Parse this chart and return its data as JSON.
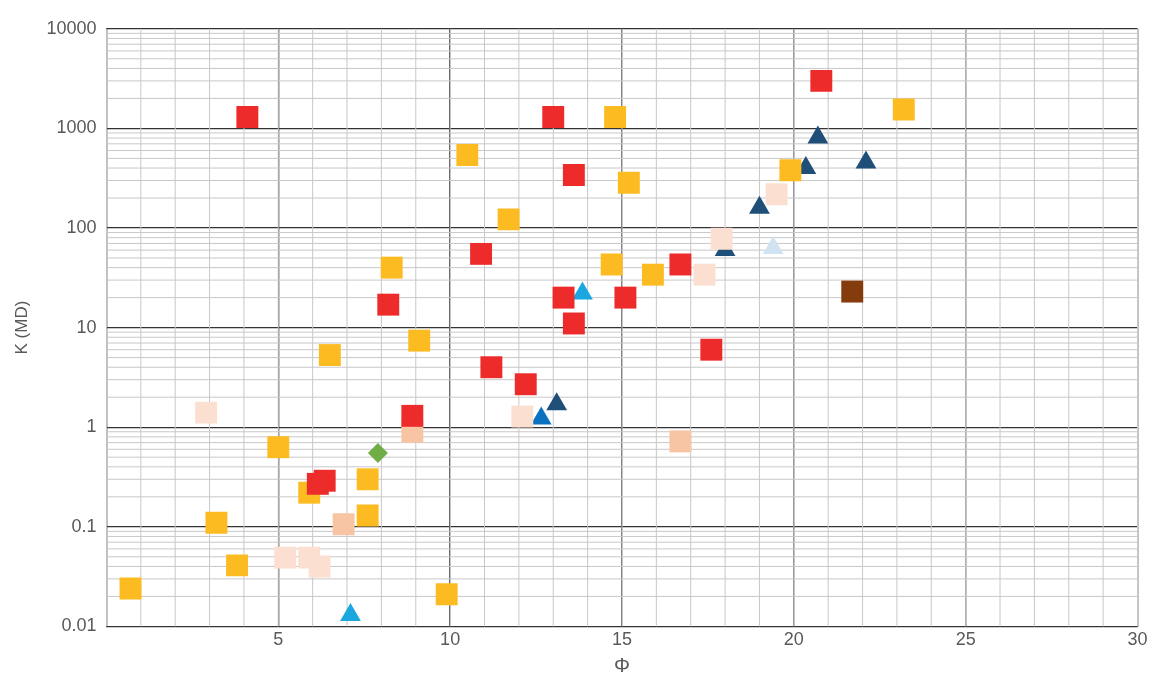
{
  "chart_data": {
    "type": "scatter",
    "xlabel": "Φ",
    "ylabel": "K (MD)",
    "log": "y",
    "grid": true,
    "legend": false,
    "xlim": [
      0,
      30
    ],
    "xticks": [
      {
        "value": 0,
        "label": null
      },
      5,
      10,
      15,
      20,
      25,
      30
    ],
    "ylim": [
      0.01,
      10000
    ],
    "yticks": [
      0.01,
      0.1,
      1,
      10,
      100,
      1000,
      10000
    ],
    "series": [
      {
        "color": "#ee2b2b",
        "marker": "square",
        "x": [
          4.1,
          20.8,
          13,
          13.6,
          10.9,
          8.2,
          13.3,
          13.6,
          15.1,
          16.7,
          17.6,
          11.2,
          12.2,
          8.9,
          6.15,
          6.35
        ],
        "values": [
          1300,
          3000,
          1300,
          340,
          55,
          17,
          20,
          11,
          20,
          43,
          6,
          4,
          2.7,
          1.3,
          0.27,
          0.29
        ]
      },
      {
        "color": "#fdbb22",
        "marker": "square",
        "x": [
          14.8,
          23.2,
          10.5,
          15.2,
          19.9,
          11.7,
          8.3,
          14.7,
          15.9,
          6.5,
          9.1,
          5,
          5.9,
          7.6,
          7.6,
          3.2,
          3.8,
          0.7,
          9.9
        ],
        "values": [
          1300,
          1550,
          540,
          285,
          380,
          122,
          40,
          43,
          34,
          5.3,
          7.4,
          0.63,
          0.22,
          0.3,
          0.13,
          0.11,
          0.041,
          0.024,
          0.021
        ]
      },
      {
        "color": "#fbe0d2",
        "marker": "square",
        "x": [
          2.9,
          12.1,
          17.4,
          17.9,
          19.5,
          5.2,
          5.9,
          6.2
        ],
        "values": [
          1.4,
          1.28,
          34,
          78,
          218,
          0.049,
          0.049,
          0.04
        ]
      },
      {
        "color": "#f8c5a4",
        "marker": "square",
        "x": [
          8.9,
          6.9,
          16.7
        ],
        "values": [
          0.9,
          0.106,
          0.72
        ]
      },
      {
        "color": "#1f4e79",
        "marker": "triangle",
        "x": [
          20.7,
          20.35,
          22.1,
          19,
          18,
          13.1
        ],
        "values": [
          810,
          400,
          455,
          160,
          60,
          1.7
        ]
      },
      {
        "color": "#1aa7e0",
        "marker": "triangle",
        "x": [
          13.85,
          7.1
        ],
        "values": [
          22,
          0.013
        ]
      },
      {
        "color": "#0b72c2",
        "marker": "triangle",
        "x": [
          12.65
        ],
        "values": [
          1.22
        ]
      },
      {
        "color": "#cfe3f3",
        "marker": "triangle",
        "x": [
          19.4
        ],
        "values": [
          63
        ]
      },
      {
        "color": "#70ad47",
        "marker": "diamond",
        "x": [
          7.9
        ],
        "values": [
          0.55
        ]
      },
      {
        "color": "#843c0c",
        "marker": "square",
        "x": [
          21.7
        ],
        "values": [
          23
        ]
      }
    ]
  }
}
